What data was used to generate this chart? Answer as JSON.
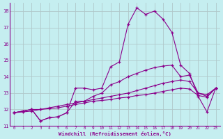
{
  "xlabel": "Windchill (Refroidissement éolien,°C)",
  "bg_color": "#c5eef0",
  "line_color": "#8b008b",
  "grid_color": "#b0c8ca",
  "xlim": [
    -0.5,
    23.5
  ],
  "ylim": [
    11,
    18.5
  ],
  "xticks": [
    0,
    1,
    2,
    3,
    4,
    5,
    6,
    7,
    8,
    9,
    10,
    11,
    12,
    13,
    14,
    15,
    16,
    17,
    18,
    19,
    20,
    21,
    22,
    23
  ],
  "yticks": [
    11,
    12,
    13,
    14,
    15,
    16,
    17,
    18
  ],
  "series": [
    [
      11.8,
      11.9,
      12.0,
      11.3,
      11.5,
      11.55,
      11.8,
      13.3,
      13.3,
      13.2,
      13.3,
      14.6,
      14.9,
      17.2,
      18.2,
      17.8,
      18.0,
      17.5,
      16.7,
      14.7,
      14.2,
      12.8,
      11.85,
      13.3
    ],
    [
      11.8,
      11.9,
      12.0,
      11.3,
      11.5,
      11.55,
      11.8,
      12.5,
      12.5,
      12.8,
      13.0,
      13.5,
      13.7,
      14.0,
      14.2,
      14.4,
      14.55,
      14.65,
      14.7,
      14.0,
      14.1,
      13.0,
      12.8,
      13.3
    ],
    [
      11.8,
      11.9,
      12.0,
      12.0,
      12.1,
      12.2,
      12.3,
      12.4,
      12.5,
      12.6,
      12.7,
      12.8,
      12.9,
      13.0,
      13.15,
      13.3,
      13.45,
      13.6,
      13.7,
      13.8,
      13.7,
      13.0,
      12.9,
      13.3
    ],
    [
      11.8,
      11.85,
      11.9,
      12.0,
      12.05,
      12.1,
      12.2,
      12.3,
      12.4,
      12.5,
      12.55,
      12.6,
      12.7,
      12.75,
      12.85,
      12.9,
      13.0,
      13.1,
      13.2,
      13.3,
      13.25,
      12.85,
      12.75,
      13.3
    ]
  ]
}
